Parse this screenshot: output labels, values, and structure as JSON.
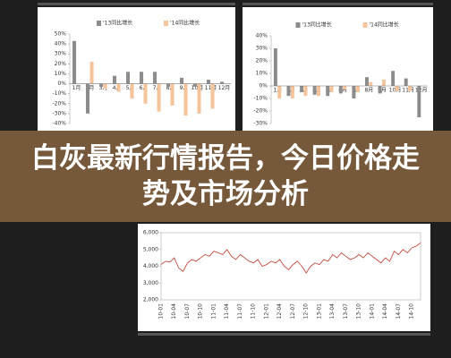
{
  "banner": {
    "title": "白灰最新行情报告，今日价格走势及市场分析"
  },
  "chart_data": [
    {
      "type": "bar",
      "categories": [
        "1月",
        "2月",
        "3月",
        "4月",
        "5月",
        "6月",
        "7月",
        "8月",
        "9月",
        "10月",
        "11月",
        "12月"
      ],
      "series": [
        {
          "name": "'13同比增长",
          "color": "#8c8c8c",
          "values": [
            43,
            -30,
            -3,
            8,
            12,
            12,
            12,
            -3,
            6,
            -3,
            4,
            2
          ]
        },
        {
          "name": "'14同比增长",
          "color": "#f5c49a",
          "values": [
            null,
            22,
            -5,
            -8,
            -15,
            -20,
            -28,
            -22,
            -32,
            -30,
            -25,
            null
          ]
        }
      ],
      "ylim": [
        -40,
        50
      ],
      "yticks": [
        {
          "value": -40,
          "label": "-40%"
        },
        {
          "value": -30,
          "label": "-30%"
        },
        {
          "value": -20,
          "label": "-20%"
        },
        {
          "value": -10,
          "label": "-10%"
        },
        {
          "value": 0,
          "label": "0%"
        },
        {
          "value": 10,
          "label": "10%"
        },
        {
          "value": 20,
          "label": "20%"
        },
        {
          "value": 30,
          "label": "30%"
        },
        {
          "value": 40,
          "label": "40%"
        },
        {
          "value": 50,
          "label": "50%"
        }
      ]
    },
    {
      "type": "bar",
      "categories": [
        "1月",
        "2月",
        "3月",
        "4月",
        "5月",
        "6月",
        "7月",
        "8月",
        "9月",
        "10月",
        "11月",
        "12月"
      ],
      "series": [
        {
          "name": "'13同比增长",
          "color": "#8c8c8c",
          "values": [
            30,
            -8,
            -5,
            -7,
            -8,
            -6,
            -10,
            7,
            -6,
            12,
            6,
            -25
          ]
        },
        {
          "name": "'14同比增长",
          "color": "#f5c49a",
          "values": [
            -10,
            -10,
            -8,
            -8,
            -5,
            -3,
            -5,
            3,
            5,
            -4,
            -4,
            null
          ]
        }
      ],
      "ylim": [
        -30,
        40
      ],
      "yticks": [
        {
          "value": -30,
          "label": "-30%"
        },
        {
          "value": -20,
          "label": "-20%"
        },
        {
          "value": -10,
          "label": "-10%"
        },
        {
          "value": 0,
          "label": "0%"
        },
        {
          "value": 10,
          "label": "10%"
        },
        {
          "value": 20,
          "label": "20%"
        },
        {
          "value": 30,
          "label": "30%"
        },
        {
          "value": 40,
          "label": "40%"
        }
      ]
    },
    {
      "type": "line",
      "categories": [
        "10-01",
        null,
        null,
        "10-04",
        null,
        null,
        "10-07",
        null,
        null,
        "10-10",
        null,
        null,
        "11-01",
        null,
        null,
        "11-04",
        null,
        null,
        "11-07",
        null,
        null,
        "11-10",
        null,
        null,
        "12-01",
        null,
        null,
        "12-04",
        null,
        null,
        "12-07",
        null,
        null,
        "12-10",
        null,
        null,
        "13-01",
        null,
        null,
        "13-04",
        null,
        null,
        "13-07",
        null,
        null,
        "13-10",
        null,
        null,
        "14-01",
        null,
        null,
        "14-04",
        null,
        null,
        "14-07",
        null,
        null,
        "14-10",
        null,
        null
      ],
      "series": [
        {
          "color": "#c0392b",
          "values": [
            4100,
            4300,
            4250,
            4500,
            3900,
            3700,
            4200,
            4400,
            4300,
            4500,
            4700,
            4600,
            4900,
            4800,
            4700,
            5000,
            4600,
            4400,
            4700,
            4500,
            4300,
            4200,
            4400,
            4000,
            4100,
            4300,
            4200,
            4400,
            4000,
            3800,
            4100,
            4300,
            4000,
            3600,
            4000,
            4200,
            4100,
            4400,
            4300,
            4700,
            4500,
            4800,
            4600,
            4400,
            4500,
            4700,
            4500,
            4800,
            4600,
            4400,
            4200,
            4500,
            4300,
            4900,
            4700,
            5000,
            4800,
            5100,
            5200,
            5400
          ]
        }
      ],
      "ylim": [
        2000,
        6000
      ],
      "yticks": [
        {
          "value": 2000,
          "label": "2,000"
        },
        {
          "value": 3000,
          "label": "3,000"
        },
        {
          "value": 4000,
          "label": "4,000"
        },
        {
          "value": 5000,
          "label": "5,000"
        },
        {
          "value": 6000,
          "label": "6,000"
        }
      ]
    }
  ]
}
